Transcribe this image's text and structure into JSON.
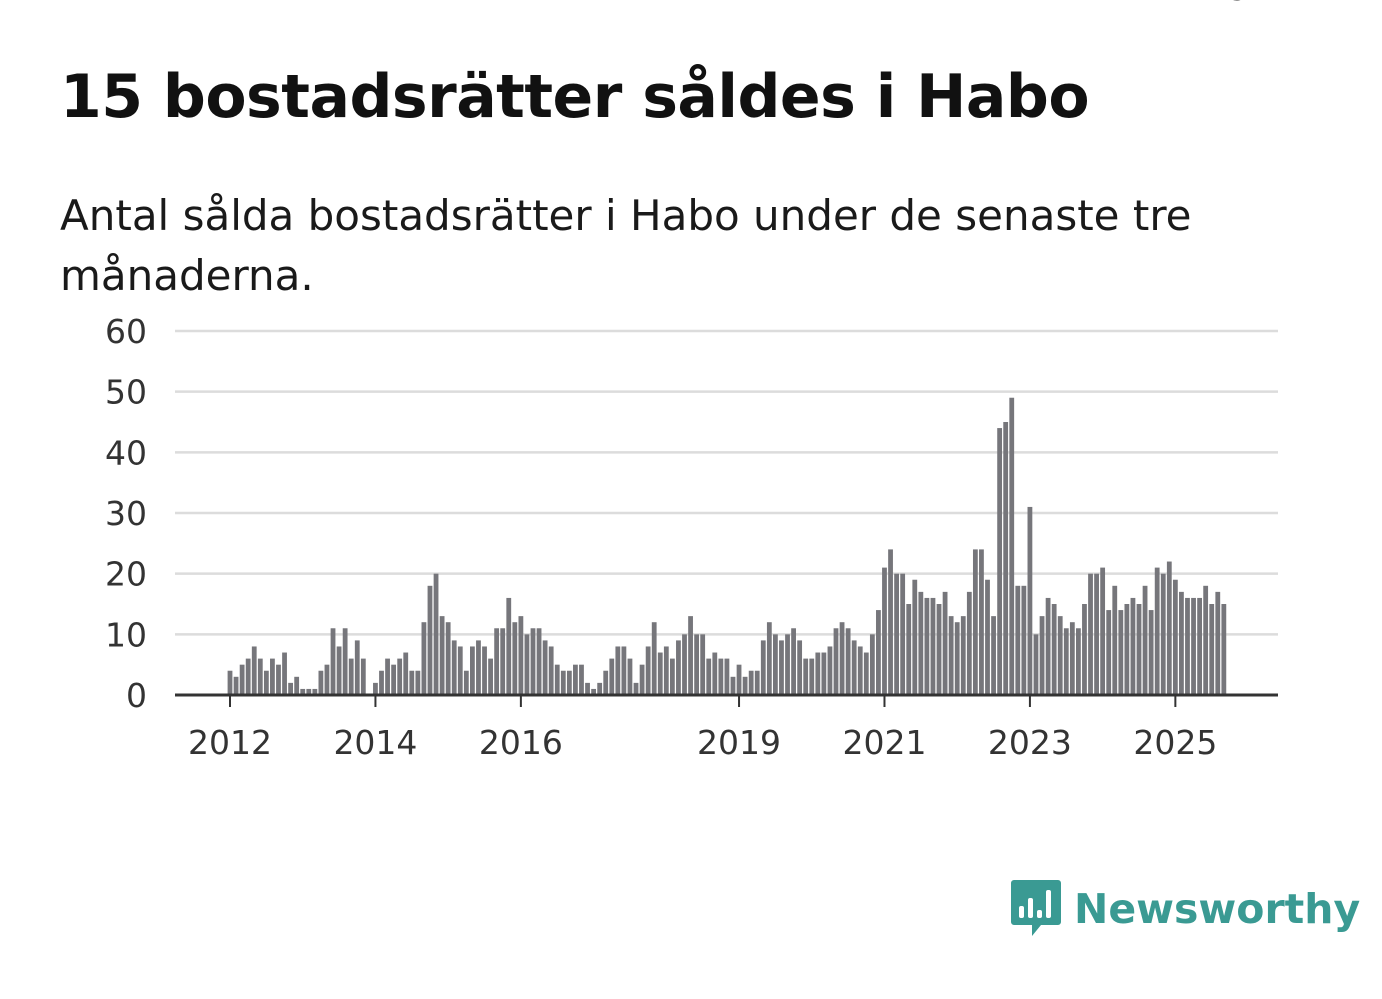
{
  "title": "15 bostadsrätter såldes i Habo",
  "subtitle": "Antal sålda bostadsrätter i Habo under de senaste tre månaderna.",
  "brand": {
    "name": "Newsworthy",
    "color": "#3a9a93",
    "icon": "bar-chart-speech-bubble-icon"
  },
  "colors": {
    "bar": "#76767b",
    "highlight": "#2a9a93",
    "grid": "#dcdcdc",
    "axis": "#333333"
  },
  "chart_data": {
    "type": "bar",
    "title": "15 bostadsrätter såldes i Habo",
    "xlabel": "",
    "ylabel": "",
    "ylim": [
      0,
      60
    ],
    "yticks": [
      "0",
      "10",
      "20",
      "30",
      "40",
      "50",
      "60"
    ],
    "ytick_values": [
      0,
      10,
      20,
      30,
      40,
      50,
      60
    ],
    "xticks": [
      {
        "label": "2012",
        "index": 0
      },
      {
        "label": "2014",
        "index": 24
      },
      {
        "label": "2016",
        "index": 48
      },
      {
        "label": "2019",
        "index": 84
      },
      {
        "label": "2021",
        "index": 108
      },
      {
        "label": "2023",
        "index": 132
      },
      {
        "label": "2025",
        "index": 156
      }
    ],
    "series": [
      {
        "name": "Sålda bostadsrätter",
        "values": [
          4,
          3,
          5,
          6,
          8,
          6,
          4,
          6,
          5,
          7,
          2,
          3,
          1,
          1,
          1,
          4,
          5,
          11,
          8,
          11,
          6,
          9,
          6,
          0,
          2,
          4,
          6,
          5,
          6,
          7,
          4,
          4,
          12,
          18,
          20,
          13,
          12,
          9,
          8,
          4,
          8,
          9,
          8,
          6,
          11,
          11,
          16,
          12,
          13,
          10,
          11,
          11,
          9,
          8,
          5,
          4,
          4,
          5,
          5,
          2,
          1,
          2,
          4,
          6,
          8,
          8,
          6,
          2,
          5,
          8,
          12,
          7,
          8,
          6,
          9,
          10,
          13,
          10,
          10,
          6,
          7,
          6,
          6,
          3,
          5,
          3,
          4,
          4,
          9,
          12,
          10,
          9,
          10,
          11,
          9,
          6,
          6,
          7,
          7,
          8,
          11,
          12,
          11,
          9,
          8,
          7,
          10,
          14,
          21,
          24,
          20,
          20,
          15,
          19,
          17,
          16,
          16,
          15,
          17,
          13,
          12,
          13,
          17,
          24,
          24,
          19,
          13,
          44,
          45,
          49,
          18,
          18,
          31,
          10,
          13,
          16,
          15,
          13,
          11,
          12,
          11,
          15,
          20,
          20,
          21,
          14,
          18,
          14,
          15,
          16,
          15,
          18,
          14,
          21,
          20,
          22,
          19,
          17,
          16,
          16,
          16,
          18,
          15,
          17,
          15
        ]
      }
    ],
    "highlight_index": 165,
    "annotation": "15"
  }
}
